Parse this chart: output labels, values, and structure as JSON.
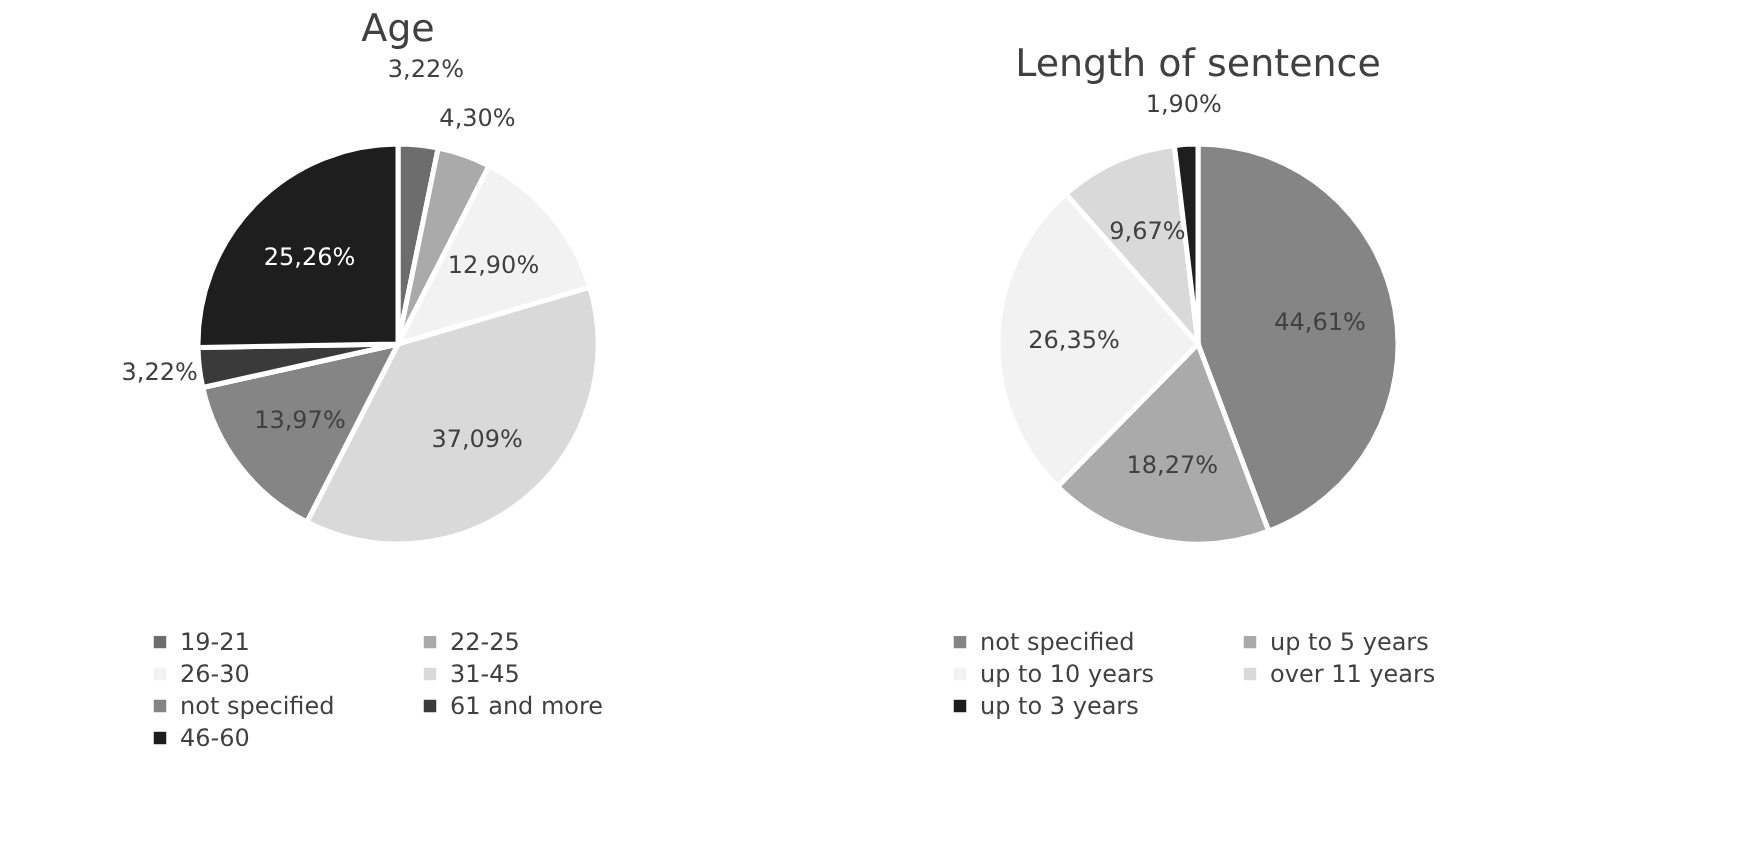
{
  "chart_data": [
    {
      "type": "pie",
      "title": "Age",
      "categories": [
        "19-21",
        "22-25",
        "26-30",
        "31-45",
        "not specified",
        "61 and more",
        "46-60"
      ],
      "values": [
        3.22,
        4.3,
        12.9,
        37.09,
        13.97,
        3.22,
        25.26
      ],
      "colors": [
        "#6d6d6d",
        "#aaaaaa",
        "#f2f2f2",
        "#d9d9d9",
        "#858585",
        "#3a3a3a",
        "#1e1e1e"
      ],
      "value_labels": [
        "3,22%",
        "4,30%",
        "12,90%",
        "37,09%",
        "13,97%",
        "3,22%",
        "25,26%"
      ],
      "legend": "bottom"
    },
    {
      "type": "pie",
      "title": "Length of sentence",
      "categories": [
        "not specified",
        "up to 5 years",
        "up to 10 years",
        "over 11 years",
        "up to 3 years"
      ],
      "values": [
        44.61,
        18.27,
        26.35,
        9.67,
        1.9
      ],
      "colors": [
        "#858585",
        "#aaaaaa",
        "#f2f2f2",
        "#d9d9d9",
        "#1e1e1e"
      ],
      "value_labels": [
        "44,61%",
        "18,27%",
        "26,35%",
        "9,67%",
        "1,90%"
      ],
      "legend": "bottom"
    }
  ]
}
